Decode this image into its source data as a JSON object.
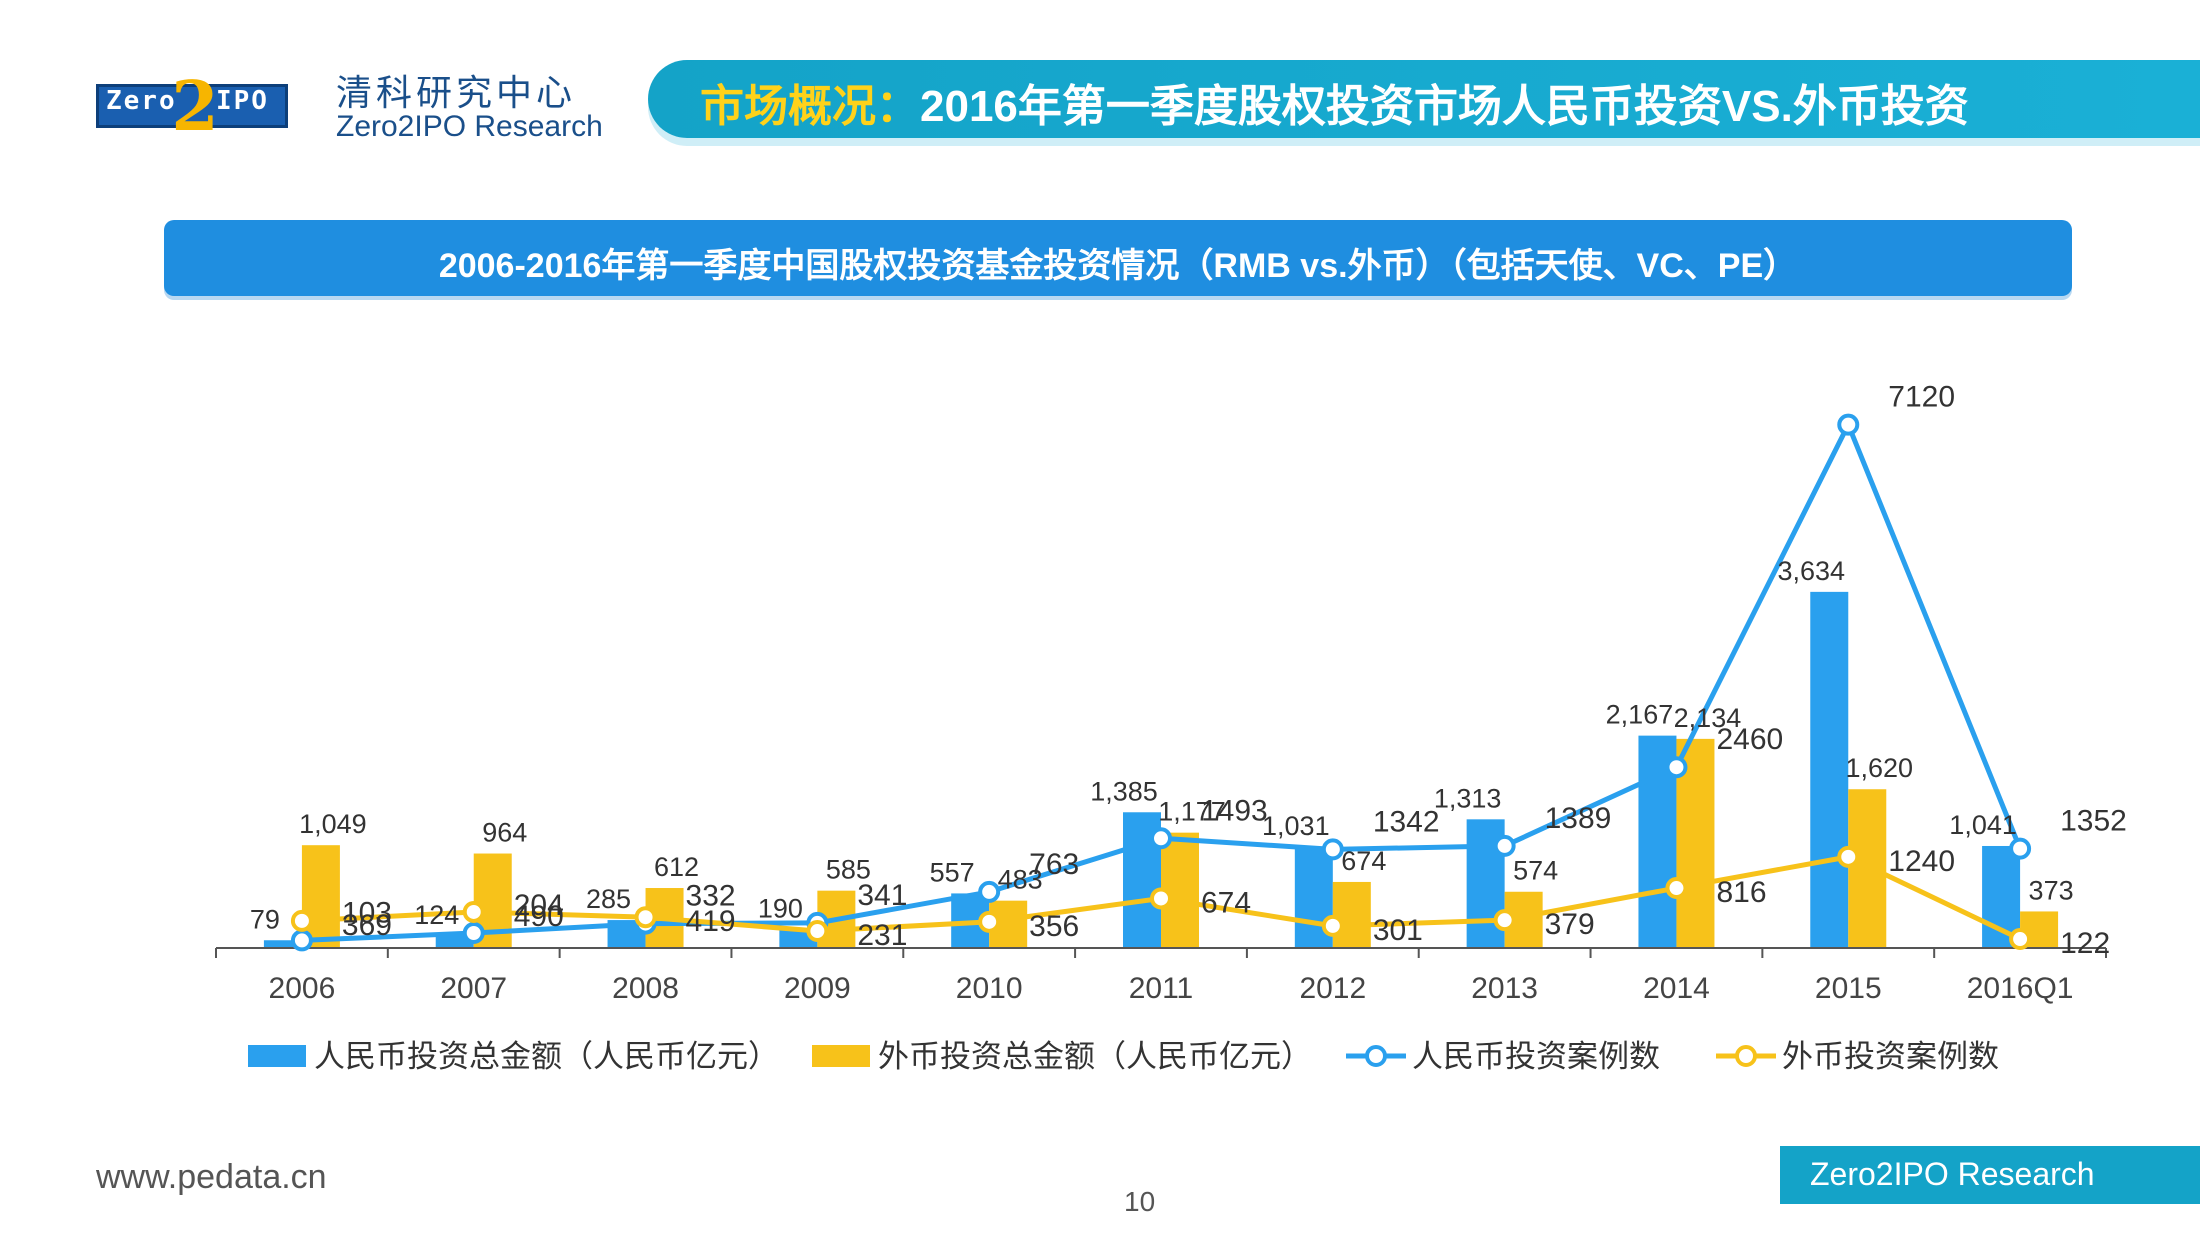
{
  "header": {
    "logo_text": "Zero",
    "logo_two": "2",
    "logo_ipo": "IPO",
    "brand_cn": "清科研究中心",
    "brand_en": "Zero2IPO Research",
    "title_prefix": "市场概况：",
    "title_main": "2016年第一季度股权投资市场人民币投资VS.外币投资"
  },
  "chart_data": {
    "type": "bar",
    "title": "2006-2016年第一季度中国股权投资基金投资情况（RMB vs.外币）（包括天使、VC、PE）",
    "categories": [
      "2006",
      "2007",
      "2008",
      "2009",
      "2010",
      "2011",
      "2012",
      "2013",
      "2014",
      "2015",
      "2016Q1"
    ],
    "series": [
      {
        "name": "人民币投资总金额（人民币亿元）",
        "kind": "bar",
        "axis": "left",
        "color": "#2aa0ee",
        "values": [
          79,
          124,
          285,
          190,
          557,
          1385,
          1031,
          1313,
          2167,
          3634,
          1041
        ],
        "labels": [
          "79",
          "124",
          "285",
          "190",
          "557",
          "1,385",
          "1,031",
          "1,313",
          "2,167",
          "3,634",
          "1,041"
        ]
      },
      {
        "name": "外币投资总金额（人民币亿元）",
        "kind": "bar",
        "axis": "left",
        "color": "#f7c21a",
        "values": [
          1049,
          964,
          612,
          585,
          483,
          1177,
          674,
          574,
          2134,
          1620,
          373
        ],
        "labels": [
          "1,049",
          "964",
          "612",
          "585",
          "483",
          "1,177",
          "674",
          "574",
          "2,134",
          "1,620",
          "373"
        ]
      },
      {
        "name": "人民币投资案例数",
        "kind": "line",
        "axis": "right",
        "color": "#2aa0ee",
        "values": [
          103,
          204,
          332,
          341,
          763,
          1493,
          1342,
          1389,
          2460,
          7120,
          1352
        ],
        "labels": [
          "103",
          "204",
          "332",
          "341",
          "763",
          "1493",
          "1342",
          "1389",
          "2460",
          "7120",
          "1352"
        ]
      },
      {
        "name": "外币投资案例数",
        "kind": "line",
        "axis": "right",
        "color": "#f7c21a",
        "values": [
          369,
          490,
          419,
          231,
          356,
          674,
          301,
          379,
          816,
          1240,
          122
        ],
        "labels": [
          "369",
          "490",
          "419",
          "231",
          "356",
          "674",
          "301",
          "379",
          "816",
          "1240",
          "122"
        ]
      }
    ],
    "ylim_left": [
      0,
      6000
    ],
    "ylim_right": [
      0,
      8000
    ],
    "legend_position": "bottom"
  },
  "footer": {
    "url": "www.pedata.cn",
    "page": "10",
    "badge": "Zero2IPO Research"
  }
}
